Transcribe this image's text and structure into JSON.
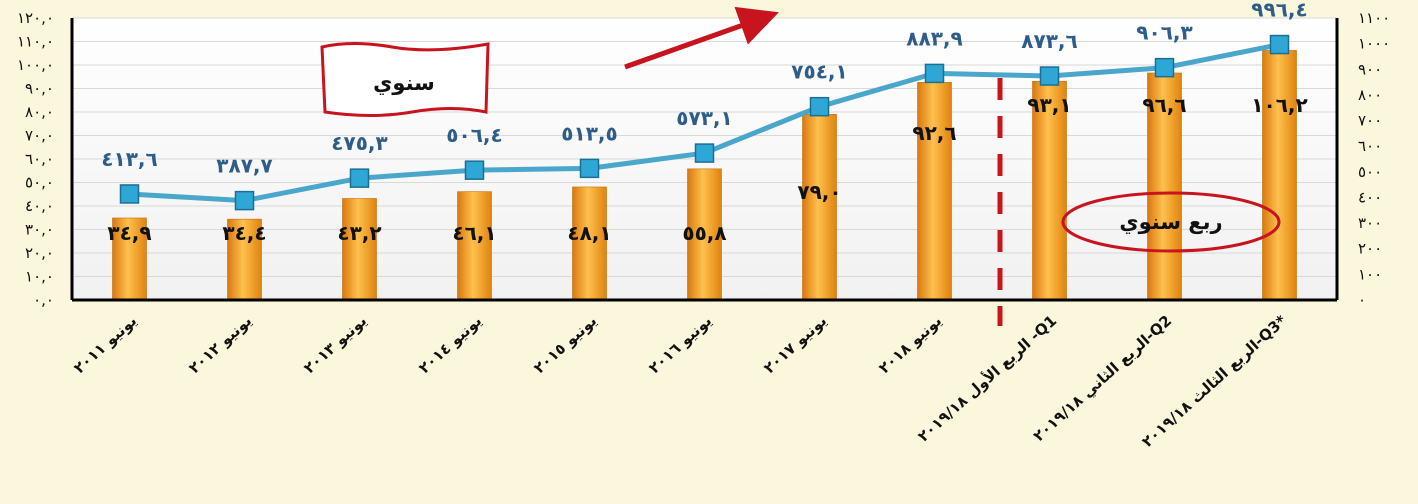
{
  "chart_data": {
    "type": "bar+line",
    "categories": [
      "يونيو ٢٠١١",
      "يونيو ٢٠١٢",
      "يونيو ٢٠١٣",
      "يونيو ٢٠١٤",
      "يونيو ٢٠١٥",
      "يونيو ٢٠١٦",
      "يونيو ٢٠١٧",
      "يونيو ٢٠١٨",
      "الربع الأول ٢٠١٩/١٨ -Q1",
      "الربع الثاني ٢٠١٩/١٨-Q2",
      "الربع الثالث ٢٠١٩/١٨-Q3*"
    ],
    "bars": {
      "axis": "left",
      "values": [
        34.9,
        34.4,
        43.2,
        46.1,
        48.1,
        55.8,
        79.0,
        92.6,
        93.1,
        96.6,
        106.2
      ],
      "labels": [
        "٣٤,٩",
        "٣٤,٤",
        "٤٣,٢",
        "٤٦,١",
        "٤٨,١",
        "٥٥,٨",
        "٧٩,٠",
        "٩٢,٦",
        "٩٣,١",
        "٩٦,٦",
        "١٠٦,٢"
      ]
    },
    "line": {
      "axis": "right",
      "values": [
        413.6,
        387.7,
        475.3,
        506.4,
        513.5,
        573.1,
        754.1,
        883.9,
        873.6,
        906.3,
        996.4
      ],
      "labels": [
        "٤١٣,٦",
        "٣٨٧,٧",
        "٤٧٥,٣",
        "٥٠٦,٤",
        "٥١٣,٥",
        "٥٧٣,١",
        "٧٥٤,١",
        "٨٨٣,٩",
        "٨٧٣,٦",
        "٩٠٦,٣",
        "٩٩٦,٤"
      ]
    },
    "left_axis": {
      "ylim": [
        0,
        120
      ],
      "ticks": [
        "٠,٠",
        "١٠,٠",
        "٢٠,٠",
        "٣٠,٠",
        "٤٠,٠",
        "٥٠,٠",
        "٦٠,٠",
        "٧٠,٠",
        "٨٠,٠",
        "٩٠,٠",
        "١٠٠,٠",
        "١١٠,٠",
        "١٢٠,٠"
      ]
    },
    "right_axis": {
      "ylim": [
        0,
        1100
      ],
      "ticks": [
        "٠",
        "١٠٠",
        "٢٠٠",
        "٣٠٠",
        "٤٠٠",
        "٥٠٠",
        "٦٠٠",
        "٧٠٠",
        "٨٠٠",
        "٩٠٠",
        "١٠٠٠",
        "١١٠٠"
      ]
    },
    "annotations": {
      "annual": "سنوي",
      "quarterly": "ربع سنوي"
    },
    "grid": true,
    "colors": {
      "bar": "#f39a1e",
      "line": "#4ba6cc",
      "marker": "#2ea7d6",
      "line_label": "#2f5d8a",
      "divider": "#c8141e",
      "arrow": "#c8141e",
      "background": "#fbf7dd"
    }
  }
}
